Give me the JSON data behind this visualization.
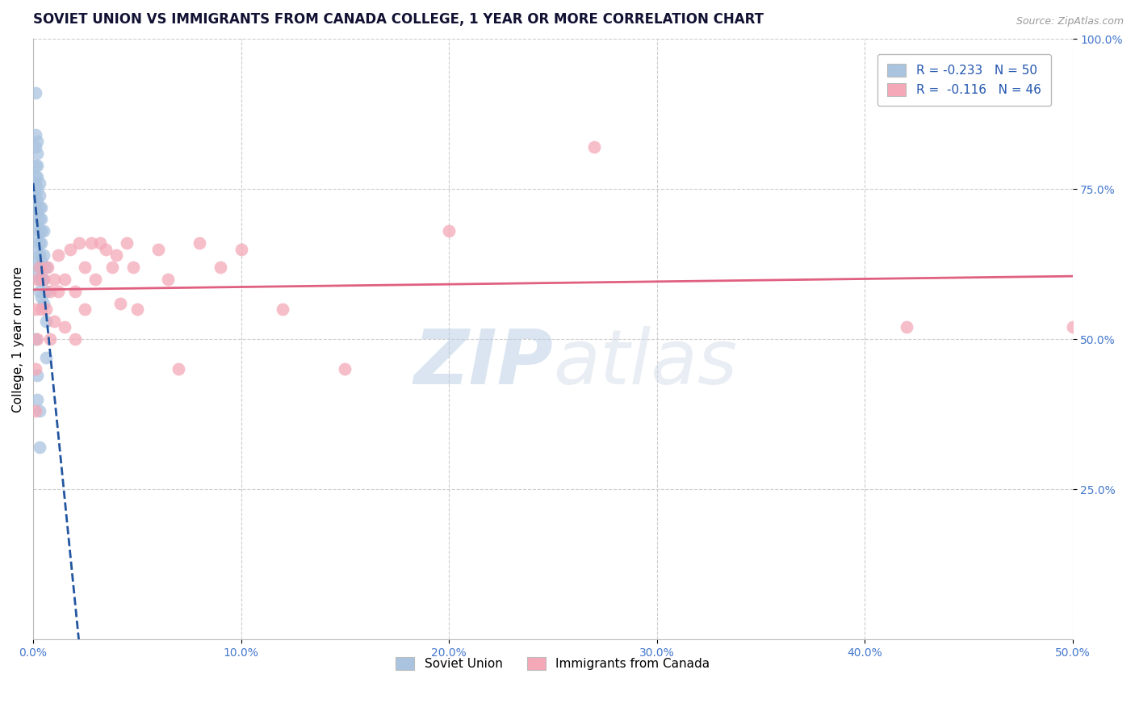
{
  "title": "SOVIET UNION VS IMMIGRANTS FROM CANADA COLLEGE, 1 YEAR OR MORE CORRELATION CHART",
  "source_text": "Source: ZipAtlas.com",
  "ylabel": "College, 1 year or more",
  "xlim": [
    0.0,
    0.5
  ],
  "ylim": [
    0.0,
    1.0
  ],
  "xtick_labels": [
    "0.0%",
    "10.0%",
    "20.0%",
    "30.0%",
    "40.0%",
    "50.0%"
  ],
  "xtick_vals": [
    0.0,
    0.1,
    0.2,
    0.3,
    0.4,
    0.5
  ],
  "ytick_labels": [
    "25.0%",
    "50.0%",
    "75.0%",
    "100.0%"
  ],
  "ytick_vals": [
    0.25,
    0.5,
    0.75,
    1.0
  ],
  "soviet_color": "#aac4e0",
  "canada_color": "#f4a8b8",
  "soviet_line_color": "#2255a0",
  "canada_line_color": "#e06080",
  "watermark_zip": "ZIP",
  "watermark_atlas": "atlas",
  "soviet_x": [
    0.001,
    0.001,
    0.001,
    0.001,
    0.001,
    0.001,
    0.001,
    0.001,
    0.002,
    0.002,
    0.002,
    0.002,
    0.002,
    0.002,
    0.002,
    0.002,
    0.002,
    0.002,
    0.002,
    0.002,
    0.003,
    0.003,
    0.003,
    0.003,
    0.003,
    0.003,
    0.003,
    0.003,
    0.003,
    0.003,
    0.004,
    0.004,
    0.004,
    0.004,
    0.004,
    0.004,
    0.004,
    0.005,
    0.005,
    0.005,
    0.005,
    0.006,
    0.006,
    0.006,
    0.006,
    0.001,
    0.002,
    0.002,
    0.003,
    0.003
  ],
  "soviet_y": [
    0.91,
    0.84,
    0.82,
    0.79,
    0.77,
    0.76,
    0.74,
    0.72,
    0.83,
    0.81,
    0.79,
    0.77,
    0.75,
    0.73,
    0.71,
    0.69,
    0.67,
    0.65,
    0.63,
    0.61,
    0.76,
    0.74,
    0.72,
    0.7,
    0.68,
    0.66,
    0.64,
    0.62,
    0.6,
    0.58,
    0.72,
    0.7,
    0.68,
    0.66,
    0.63,
    0.6,
    0.57,
    0.68,
    0.64,
    0.6,
    0.56,
    0.62,
    0.58,
    0.53,
    0.47,
    0.5,
    0.44,
    0.4,
    0.38,
    0.32
  ],
  "canada_x": [
    0.001,
    0.001,
    0.001,
    0.002,
    0.002,
    0.003,
    0.004,
    0.005,
    0.006,
    0.007,
    0.008,
    0.008,
    0.01,
    0.01,
    0.012,
    0.012,
    0.015,
    0.015,
    0.018,
    0.02,
    0.02,
    0.022,
    0.025,
    0.025,
    0.028,
    0.03,
    0.032,
    0.035,
    0.038,
    0.04,
    0.042,
    0.045,
    0.048,
    0.05,
    0.06,
    0.065,
    0.07,
    0.08,
    0.09,
    0.1,
    0.12,
    0.15,
    0.2,
    0.27,
    0.42,
    0.5
  ],
  "canada_y": [
    0.55,
    0.45,
    0.38,
    0.6,
    0.5,
    0.62,
    0.55,
    0.6,
    0.55,
    0.62,
    0.58,
    0.5,
    0.6,
    0.53,
    0.64,
    0.58,
    0.6,
    0.52,
    0.65,
    0.58,
    0.5,
    0.66,
    0.62,
    0.55,
    0.66,
    0.6,
    0.66,
    0.65,
    0.62,
    0.64,
    0.56,
    0.66,
    0.62,
    0.55,
    0.65,
    0.6,
    0.45,
    0.66,
    0.62,
    0.65,
    0.55,
    0.45,
    0.68,
    0.82,
    0.52,
    0.52
  ],
  "legend_items": [
    {
      "label": "R = -0.233   N = 50",
      "color": "#aac4e0"
    },
    {
      "label": "R =  -0.116   N = 46",
      "color": "#f4a8b8"
    }
  ],
  "legend_text_color": "#2255b0",
  "title_fontsize": 12,
  "label_fontsize": 11,
  "tick_fontsize": 10,
  "tick_color": "#4477cc"
}
